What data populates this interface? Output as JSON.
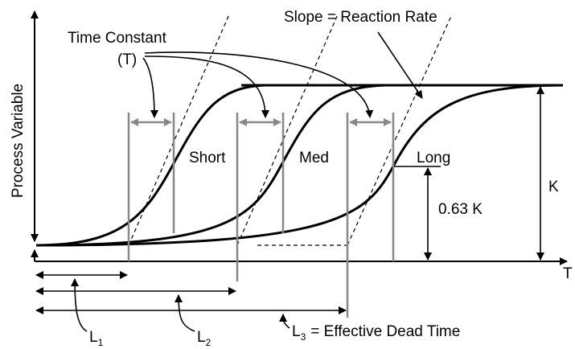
{
  "time_constant": "Time Constant",
  "tau": "(T)",
  "slope": "Slope = Reaction Rate",
  "y_label": "Process Variable",
  "x_label": "T",
  "curves": [
    "Short",
    "Med",
    "Long"
  ],
  "k": "K",
  "k63": "0.63 K",
  "dead_times": [
    {
      "main": "L",
      "sub": "1"
    },
    {
      "main": "L",
      "sub": "2"
    },
    {
      "main": "L",
      "sub": "3",
      "note": "= Effective Dead Time"
    }
  ]
}
